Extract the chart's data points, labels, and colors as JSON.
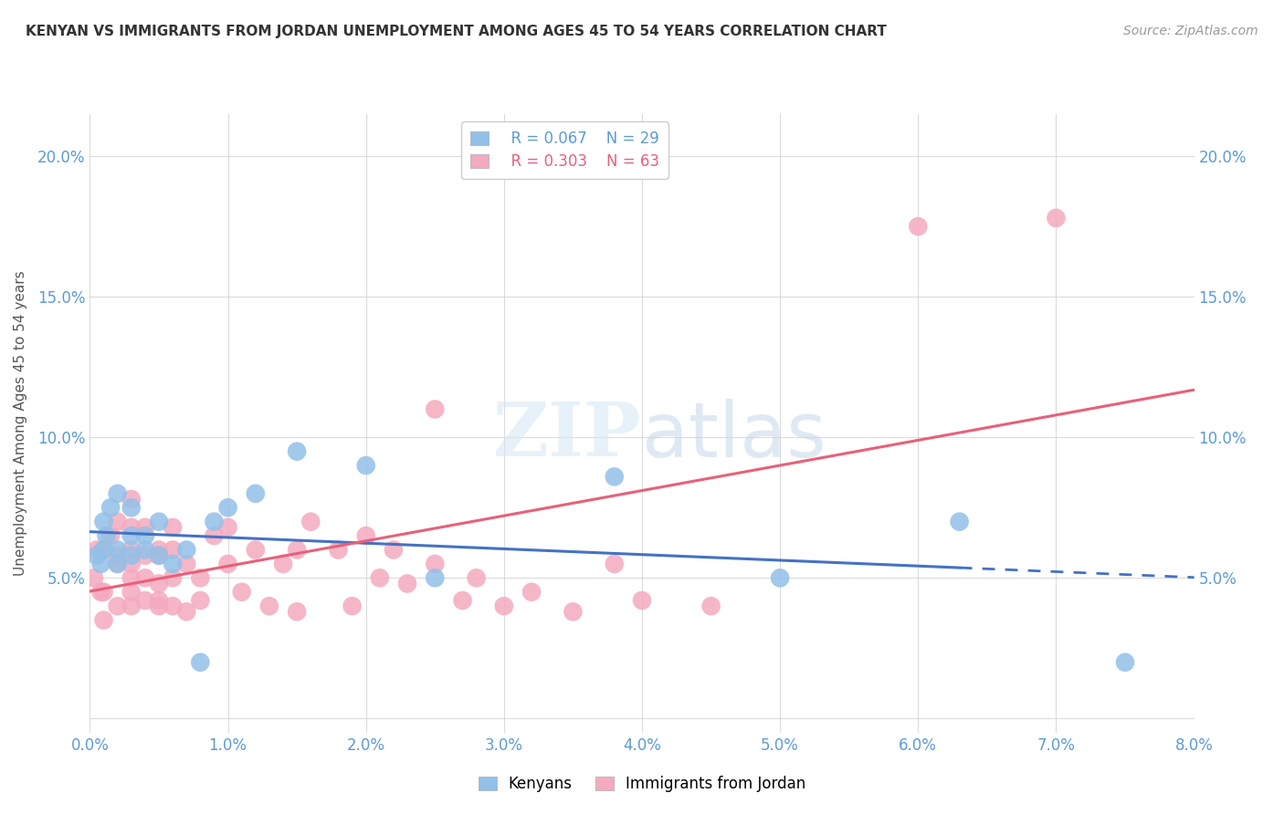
{
  "title": "KENYAN VS IMMIGRANTS FROM JORDAN UNEMPLOYMENT AMONG AGES 45 TO 54 YEARS CORRELATION CHART",
  "source": "Source: ZipAtlas.com",
  "ylabel": "Unemployment Among Ages 45 to 54 years",
  "xlim": [
    0.0,
    0.08
  ],
  "ylim": [
    -0.005,
    0.215
  ],
  "xticks": [
    0.0,
    0.01,
    0.02,
    0.03,
    0.04,
    0.05,
    0.06,
    0.07,
    0.08
  ],
  "yticks": [
    0.0,
    0.05,
    0.1,
    0.15,
    0.2
  ],
  "yticklabels": [
    "",
    "5.0%",
    "10.0%",
    "15.0%",
    "20.0%"
  ],
  "xticklabels": [
    "0.0%",
    "1.0%",
    "2.0%",
    "3.0%",
    "4.0%",
    "5.0%",
    "6.0%",
    "7.0%",
    "8.0%"
  ],
  "legend_labels": [
    "Kenyans",
    "Immigrants from Jordan"
  ],
  "blue_R": "R = 0.067",
  "blue_N": "N = 29",
  "pink_R": "R = 0.303",
  "pink_N": "N = 63",
  "blue_color": "#92C0E8",
  "pink_color": "#F4AABF",
  "blue_line_color": "#4472C4",
  "pink_line_color": "#E8607A",
  "background": "#FFFFFF",
  "tick_color": "#5B9BD5",
  "kenyan_x": [
    0.0005,
    0.0008,
    0.001,
    0.001,
    0.0012,
    0.0015,
    0.002,
    0.002,
    0.002,
    0.003,
    0.003,
    0.003,
    0.004,
    0.004,
    0.005,
    0.005,
    0.006,
    0.007,
    0.008,
    0.009,
    0.01,
    0.012,
    0.015,
    0.02,
    0.025,
    0.038,
    0.05,
    0.063,
    0.075
  ],
  "kenyan_y": [
    0.058,
    0.055,
    0.06,
    0.07,
    0.065,
    0.075,
    0.055,
    0.06,
    0.08,
    0.058,
    0.065,
    0.075,
    0.06,
    0.065,
    0.058,
    0.07,
    0.055,
    0.06,
    0.02,
    0.07,
    0.075,
    0.08,
    0.095,
    0.09,
    0.05,
    0.086,
    0.05,
    0.07,
    0.02
  ],
  "jordan_x": [
    0.0003,
    0.0005,
    0.0008,
    0.001,
    0.001,
    0.001,
    0.0015,
    0.002,
    0.002,
    0.002,
    0.002,
    0.003,
    0.003,
    0.003,
    0.003,
    0.003,
    0.003,
    0.003,
    0.004,
    0.004,
    0.004,
    0.004,
    0.005,
    0.005,
    0.005,
    0.005,
    0.005,
    0.006,
    0.006,
    0.006,
    0.006,
    0.007,
    0.007,
    0.008,
    0.008,
    0.009,
    0.01,
    0.01,
    0.011,
    0.012,
    0.013,
    0.014,
    0.015,
    0.015,
    0.016,
    0.018,
    0.019,
    0.02,
    0.021,
    0.022,
    0.023,
    0.025,
    0.027,
    0.028,
    0.03,
    0.032,
    0.035,
    0.038,
    0.04,
    0.045,
    0.06,
    0.07,
    0.025
  ],
  "jordan_y": [
    0.05,
    0.06,
    0.045,
    0.06,
    0.045,
    0.035,
    0.065,
    0.058,
    0.055,
    0.04,
    0.07,
    0.06,
    0.078,
    0.05,
    0.04,
    0.068,
    0.055,
    0.045,
    0.058,
    0.05,
    0.042,
    0.068,
    0.06,
    0.048,
    0.04,
    0.058,
    0.042,
    0.06,
    0.05,
    0.04,
    0.068,
    0.055,
    0.038,
    0.05,
    0.042,
    0.065,
    0.068,
    0.055,
    0.045,
    0.06,
    0.04,
    0.055,
    0.06,
    0.038,
    0.07,
    0.06,
    0.04,
    0.065,
    0.05,
    0.06,
    0.048,
    0.055,
    0.042,
    0.05,
    0.04,
    0.045,
    0.038,
    0.055,
    0.042,
    0.04,
    0.175,
    0.178,
    0.11
  ]
}
